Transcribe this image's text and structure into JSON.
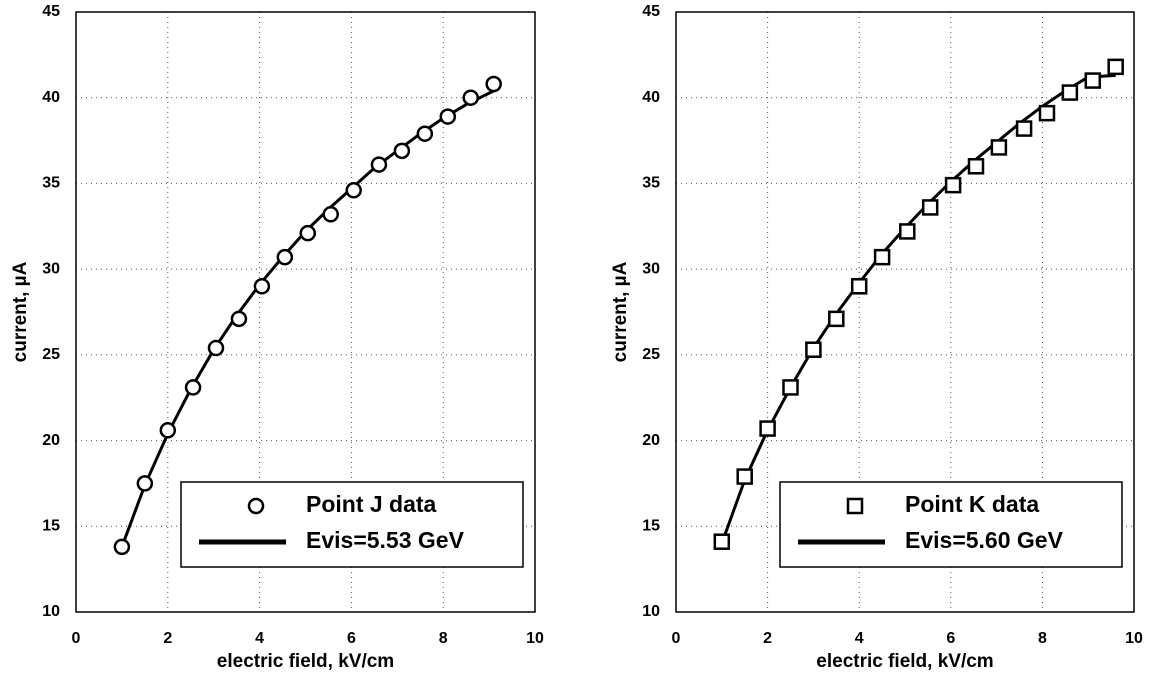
{
  "chart_data": [
    {
      "type": "scatter",
      "xlabel": "electric field, kV/cm",
      "ylabel": "current, µA",
      "xlim": [
        0,
        10
      ],
      "ylim": [
        10,
        45
      ],
      "xticks": [
        0,
        2,
        4,
        6,
        8,
        10
      ],
      "yticks": [
        10,
        15,
        20,
        25,
        30,
        35,
        40,
        45
      ],
      "grid": true,
      "legend": "lower right",
      "series": [
        {
          "name": "Point J data",
          "style": "markers",
          "marker": "circle",
          "color": "#000000",
          "x": [
            1,
            1.5,
            2,
            2.55,
            3.05,
            3.55,
            4.05,
            4.55,
            5.05,
            5.55,
            6.05,
            6.6,
            7.1,
            7.6,
            8.1,
            8.6,
            9.1
          ],
          "values": [
            13.8,
            17.5,
            20.6,
            23.1,
            25.4,
            27.1,
            29.0,
            30.7,
            32.1,
            33.2,
            34.6,
            36.1,
            36.9,
            37.9,
            38.9,
            40.0,
            40.8
          ]
        },
        {
          "name": "Evis=5.53 GeV",
          "style": "line",
          "color": "#000000",
          "x": [
            1,
            1.5,
            2,
            2.5,
            3,
            3.5,
            4,
            4.5,
            5,
            5.5,
            6,
            6.5,
            7,
            7.5,
            8,
            8.5,
            9.1
          ],
          "values": [
            13.8,
            17.4,
            20.4,
            23.0,
            25.3,
            27.3,
            29.1,
            30.7,
            32.2,
            33.5,
            34.7,
            35.9,
            36.9,
            37.9,
            38.8,
            39.6,
            40.4
          ]
        }
      ]
    },
    {
      "type": "scatter",
      "xlabel": "electric field, kV/cm",
      "ylabel": "current, µA",
      "xlim": [
        0,
        10
      ],
      "ylim": [
        10,
        45
      ],
      "xticks": [
        0,
        2,
        4,
        6,
        8,
        10
      ],
      "yticks": [
        10,
        15,
        20,
        25,
        30,
        35,
        40,
        45
      ],
      "grid": true,
      "legend": "lower right",
      "series": [
        {
          "name": "Point K data",
          "style": "markers",
          "marker": "square",
          "color": "#000000",
          "x": [
            1,
            1.5,
            2,
            2.5,
            3,
            3.5,
            4,
            4.5,
            5.05,
            5.55,
            6.05,
            6.55,
            7.05,
            7.6,
            8.1,
            8.6,
            9.1,
            9.6
          ],
          "values": [
            14.1,
            17.9,
            20.7,
            23.1,
            25.3,
            27.1,
            29.0,
            30.7,
            32.2,
            33.6,
            34.9,
            36.0,
            37.1,
            38.2,
            39.1,
            40.3,
            41.0,
            41.8
          ]
        },
        {
          "name": "Evis=5.60 GeV",
          "style": "line",
          "color": "#000000",
          "x": [
            1,
            1.5,
            2,
            2.5,
            3,
            3.5,
            4,
            4.5,
            5,
            5.5,
            6,
            6.5,
            7,
            7.5,
            8,
            8.5,
            9,
            9.6
          ],
          "values": [
            14.0,
            17.7,
            20.6,
            23.1,
            25.4,
            27.4,
            29.2,
            30.9,
            32.4,
            33.8,
            35.1,
            36.3,
            37.4,
            38.5,
            39.5,
            40.4,
            41.2,
            41.3
          ]
        }
      ]
    }
  ]
}
